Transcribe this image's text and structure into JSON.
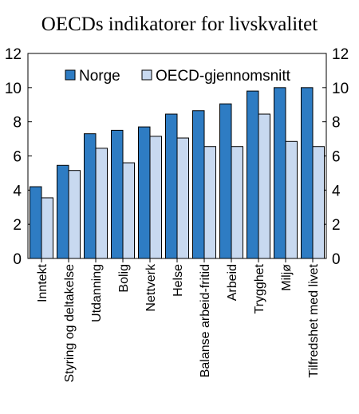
{
  "chart_data": {
    "type": "bar",
    "title": "OECDs indikatorer for livskvalitet",
    "categories": [
      "Inntekt",
      "Styring og deltakelse",
      "Utdanning",
      "Bolig",
      "Nettverk",
      "Helse",
      "Balanse arbeid-fritid",
      "Arbeid",
      "Trygghet",
      "Miljø",
      "Tilfredshet med livet"
    ],
    "series": [
      {
        "name": "Norge",
        "values": [
          4.2,
          5.45,
          7.3,
          7.5,
          7.7,
          8.45,
          8.65,
          9.05,
          9.8,
          10.0,
          10.0
        ],
        "color": "#2e7cc3"
      },
      {
        "name": "OECD-gjennomsnitt",
        "values": [
          3.55,
          5.15,
          6.45,
          5.6,
          7.15,
          7.05,
          6.55,
          6.55,
          8.45,
          6.85,
          6.55
        ],
        "color": "#c8d9f0"
      }
    ],
    "ylim": [
      0,
      12
    ],
    "yticks": [
      0,
      2,
      4,
      6,
      8,
      10,
      12
    ],
    "y_axis_both_sides": true,
    "grid": false,
    "legend_position": "top"
  }
}
